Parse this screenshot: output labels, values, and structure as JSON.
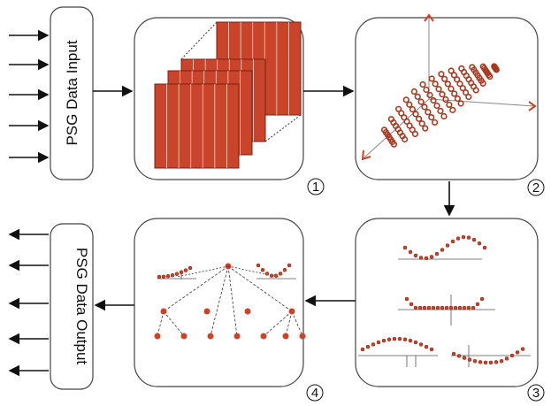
{
  "input_label": "PSG Data Input",
  "output_label": "PSG Data Output",
  "steps": [
    "1",
    "2",
    "3",
    "4"
  ]
}
